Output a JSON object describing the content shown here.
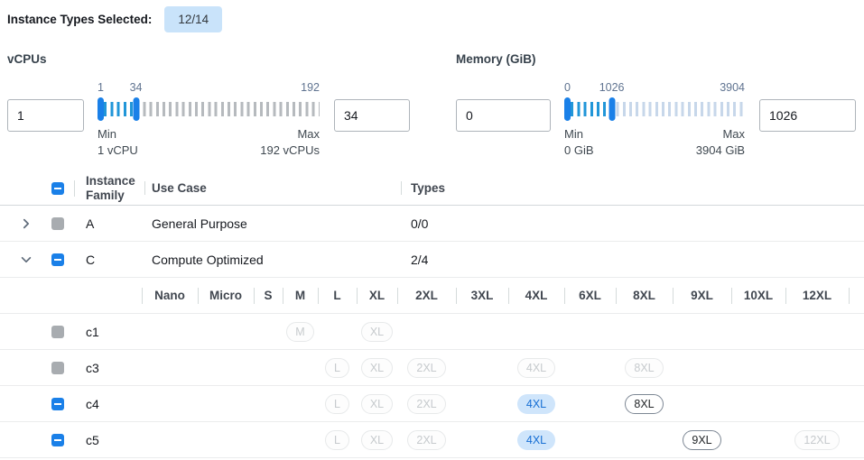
{
  "header": {
    "label": "Instance Types Selected:",
    "badge": "12/14"
  },
  "filters": {
    "vcpus": {
      "title": "vCPUs",
      "min_input": "1",
      "max_input": "34",
      "scale": {
        "min": "1",
        "current": "34",
        "max": "192"
      },
      "handle_pct": 17.3,
      "min_caption": "Min",
      "min_value": "1 vCPU",
      "max_caption": "Max",
      "max_value": "192 vCPUs"
    },
    "memory": {
      "title": "Memory (GiB)",
      "min_input": "0",
      "max_input": "1026",
      "scale": {
        "min": "0",
        "current": "1026",
        "max": "3904"
      },
      "handle_pct": 26.3,
      "min_caption": "Min",
      "min_value": "0 GiB",
      "max_caption": "Max",
      "max_value": "3904 GiB"
    }
  },
  "table": {
    "select_all_state": "indeterminate",
    "columns": {
      "family": "Instance Family",
      "use_case": "Use Case",
      "types": "Types"
    },
    "family_rows": [
      {
        "family": "A",
        "use_case": "General Purpose",
        "types": "0/0",
        "expanded": false,
        "checkbox_state": "disabled"
      },
      {
        "family": "C",
        "use_case": "Compute Optimized",
        "types": "2/4",
        "expanded": true,
        "checkbox_state": "indeterminate"
      }
    ],
    "size_columns": [
      "Nano",
      "Micro",
      "S",
      "M",
      "L",
      "XL",
      "2XL",
      "3XL",
      "4XL",
      "6XL",
      "8XL",
      "9XL",
      "10XL",
      "12XL"
    ],
    "instance_rows": [
      {
        "name": "c1",
        "checkbox_state": "disabled",
        "badges": [
          {
            "size": "M",
            "col": 4,
            "state": "disabled"
          },
          {
            "size": "XL",
            "col": 6,
            "state": "disabled"
          }
        ]
      },
      {
        "name": "c3",
        "checkbox_state": "disabled",
        "badges": [
          {
            "size": "L",
            "col": 5,
            "state": "disabled"
          },
          {
            "size": "XL",
            "col": 6,
            "state": "disabled"
          },
          {
            "size": "2XL",
            "col": 7,
            "state": "disabled"
          },
          {
            "size": "4XL",
            "col": 9,
            "state": "disabled"
          },
          {
            "size": "8XL",
            "col": 11,
            "state": "disabled"
          }
        ]
      },
      {
        "name": "c4",
        "checkbox_state": "indeterminate",
        "badges": [
          {
            "size": "L",
            "col": 5,
            "state": "disabled"
          },
          {
            "size": "XL",
            "col": 6,
            "state": "disabled"
          },
          {
            "size": "2XL",
            "col": 7,
            "state": "disabled"
          },
          {
            "size": "4XL",
            "col": 9,
            "state": "selected"
          },
          {
            "size": "8XL",
            "col": 11,
            "state": "enabled"
          }
        ]
      },
      {
        "name": "c5",
        "checkbox_state": "indeterminate",
        "badges": [
          {
            "size": "L",
            "col": 5,
            "state": "disabled"
          },
          {
            "size": "XL",
            "col": 6,
            "state": "disabled"
          },
          {
            "size": "2XL",
            "col": 7,
            "state": "disabled"
          },
          {
            "size": "4XL",
            "col": 9,
            "state": "selected"
          },
          {
            "size": "9XL",
            "col": 12,
            "state": "enabled"
          },
          {
            "size": "12XL",
            "col": 14,
            "state": "disabled"
          }
        ]
      }
    ]
  },
  "colors": {
    "accent_blue": "#1a80e8",
    "active_tick_blue": "#2196d8",
    "inactive_tick_gray": "#b6babe",
    "inactive_tick_blue": "#c7d7ea",
    "count_badge_bg": "#c9e3fa",
    "selected_badge_bg": "#cfe5fb",
    "selected_badge_text": "#176fd4",
    "disabled_checkbox": "#a8acb0"
  }
}
